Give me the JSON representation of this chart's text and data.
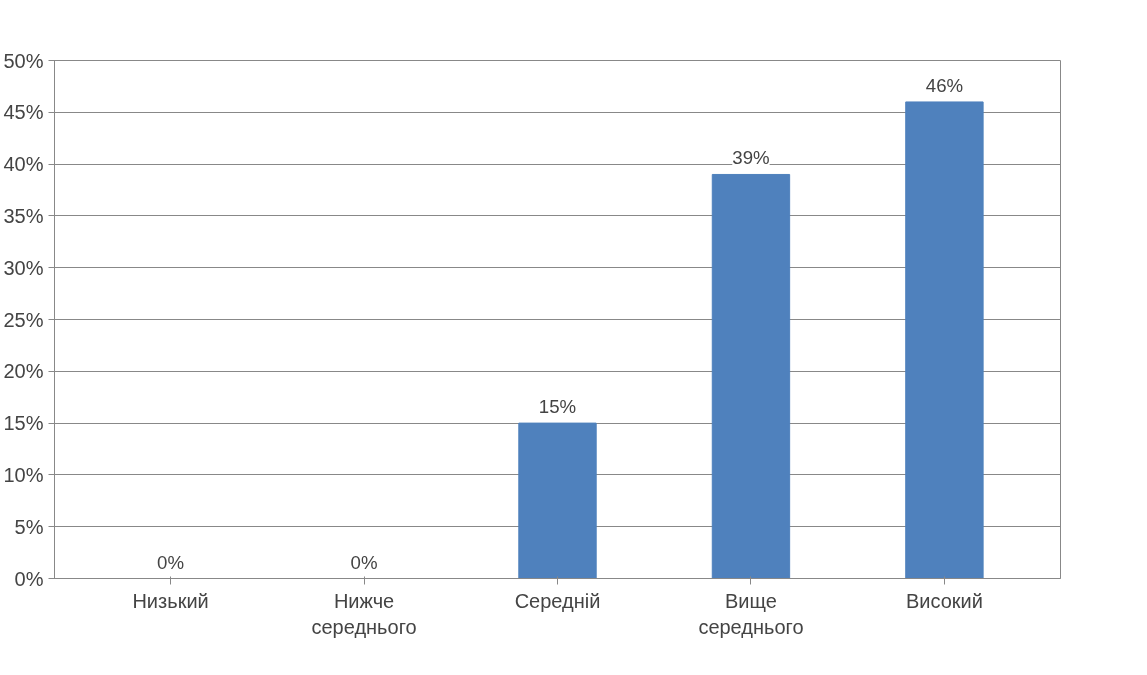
{
  "chart_data": {
    "type": "bar",
    "categories": [
      "Низький",
      "Нижче\nсереднього",
      "Середній",
      "Вище\nсереднього",
      "Високий"
    ],
    "values": [
      0,
      0,
      15,
      39,
      46
    ],
    "value_labels": [
      "0%",
      "0%",
      "15%",
      "39%",
      "46%"
    ],
    "color": "#4f81bd",
    "ylim": [
      0,
      50
    ],
    "yticks": [
      {
        "value": 0,
        "label": "0%"
      },
      {
        "value": 5,
        "label": "5%"
      },
      {
        "value": 10,
        "label": "10%"
      },
      {
        "value": 15,
        "label": "15%"
      },
      {
        "value": 20,
        "label": "20%"
      },
      {
        "value": 25,
        "label": "25%"
      },
      {
        "value": 30,
        "label": "30%"
      },
      {
        "value": 35,
        "label": "35%"
      },
      {
        "value": 40,
        "label": "40%"
      },
      {
        "value": 45,
        "label": "45%"
      },
      {
        "value": 50,
        "label": "50%"
      }
    ],
    "grid": "y"
  }
}
